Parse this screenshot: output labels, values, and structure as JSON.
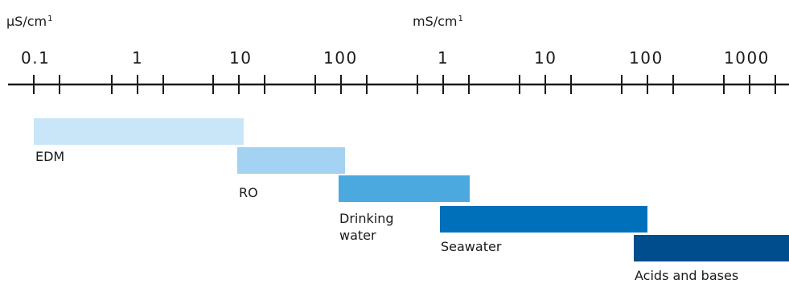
{
  "units": {
    "left": {
      "main": "µS/cm",
      "sup": "1"
    },
    "right": {
      "main": "mS/cm",
      "sup": "1"
    }
  },
  "scale": {
    "tick_labels": [
      "0.1",
      "1",
      "10",
      "100",
      "1",
      "10",
      "100",
      "1000"
    ]
  },
  "bands": [
    {
      "label": "EDM",
      "color": "#c9e6f9"
    },
    {
      "label": "RO",
      "color": "#a3d2f3"
    },
    {
      "label": "Drinking water",
      "label_lines": [
        "Drinking",
        "water"
      ],
      "color": "#4ba9e0"
    },
    {
      "label": "Seawater",
      "color": "#0070bb"
    },
    {
      "label": "Acids and bases",
      "color": "#004d8e"
    }
  ]
}
